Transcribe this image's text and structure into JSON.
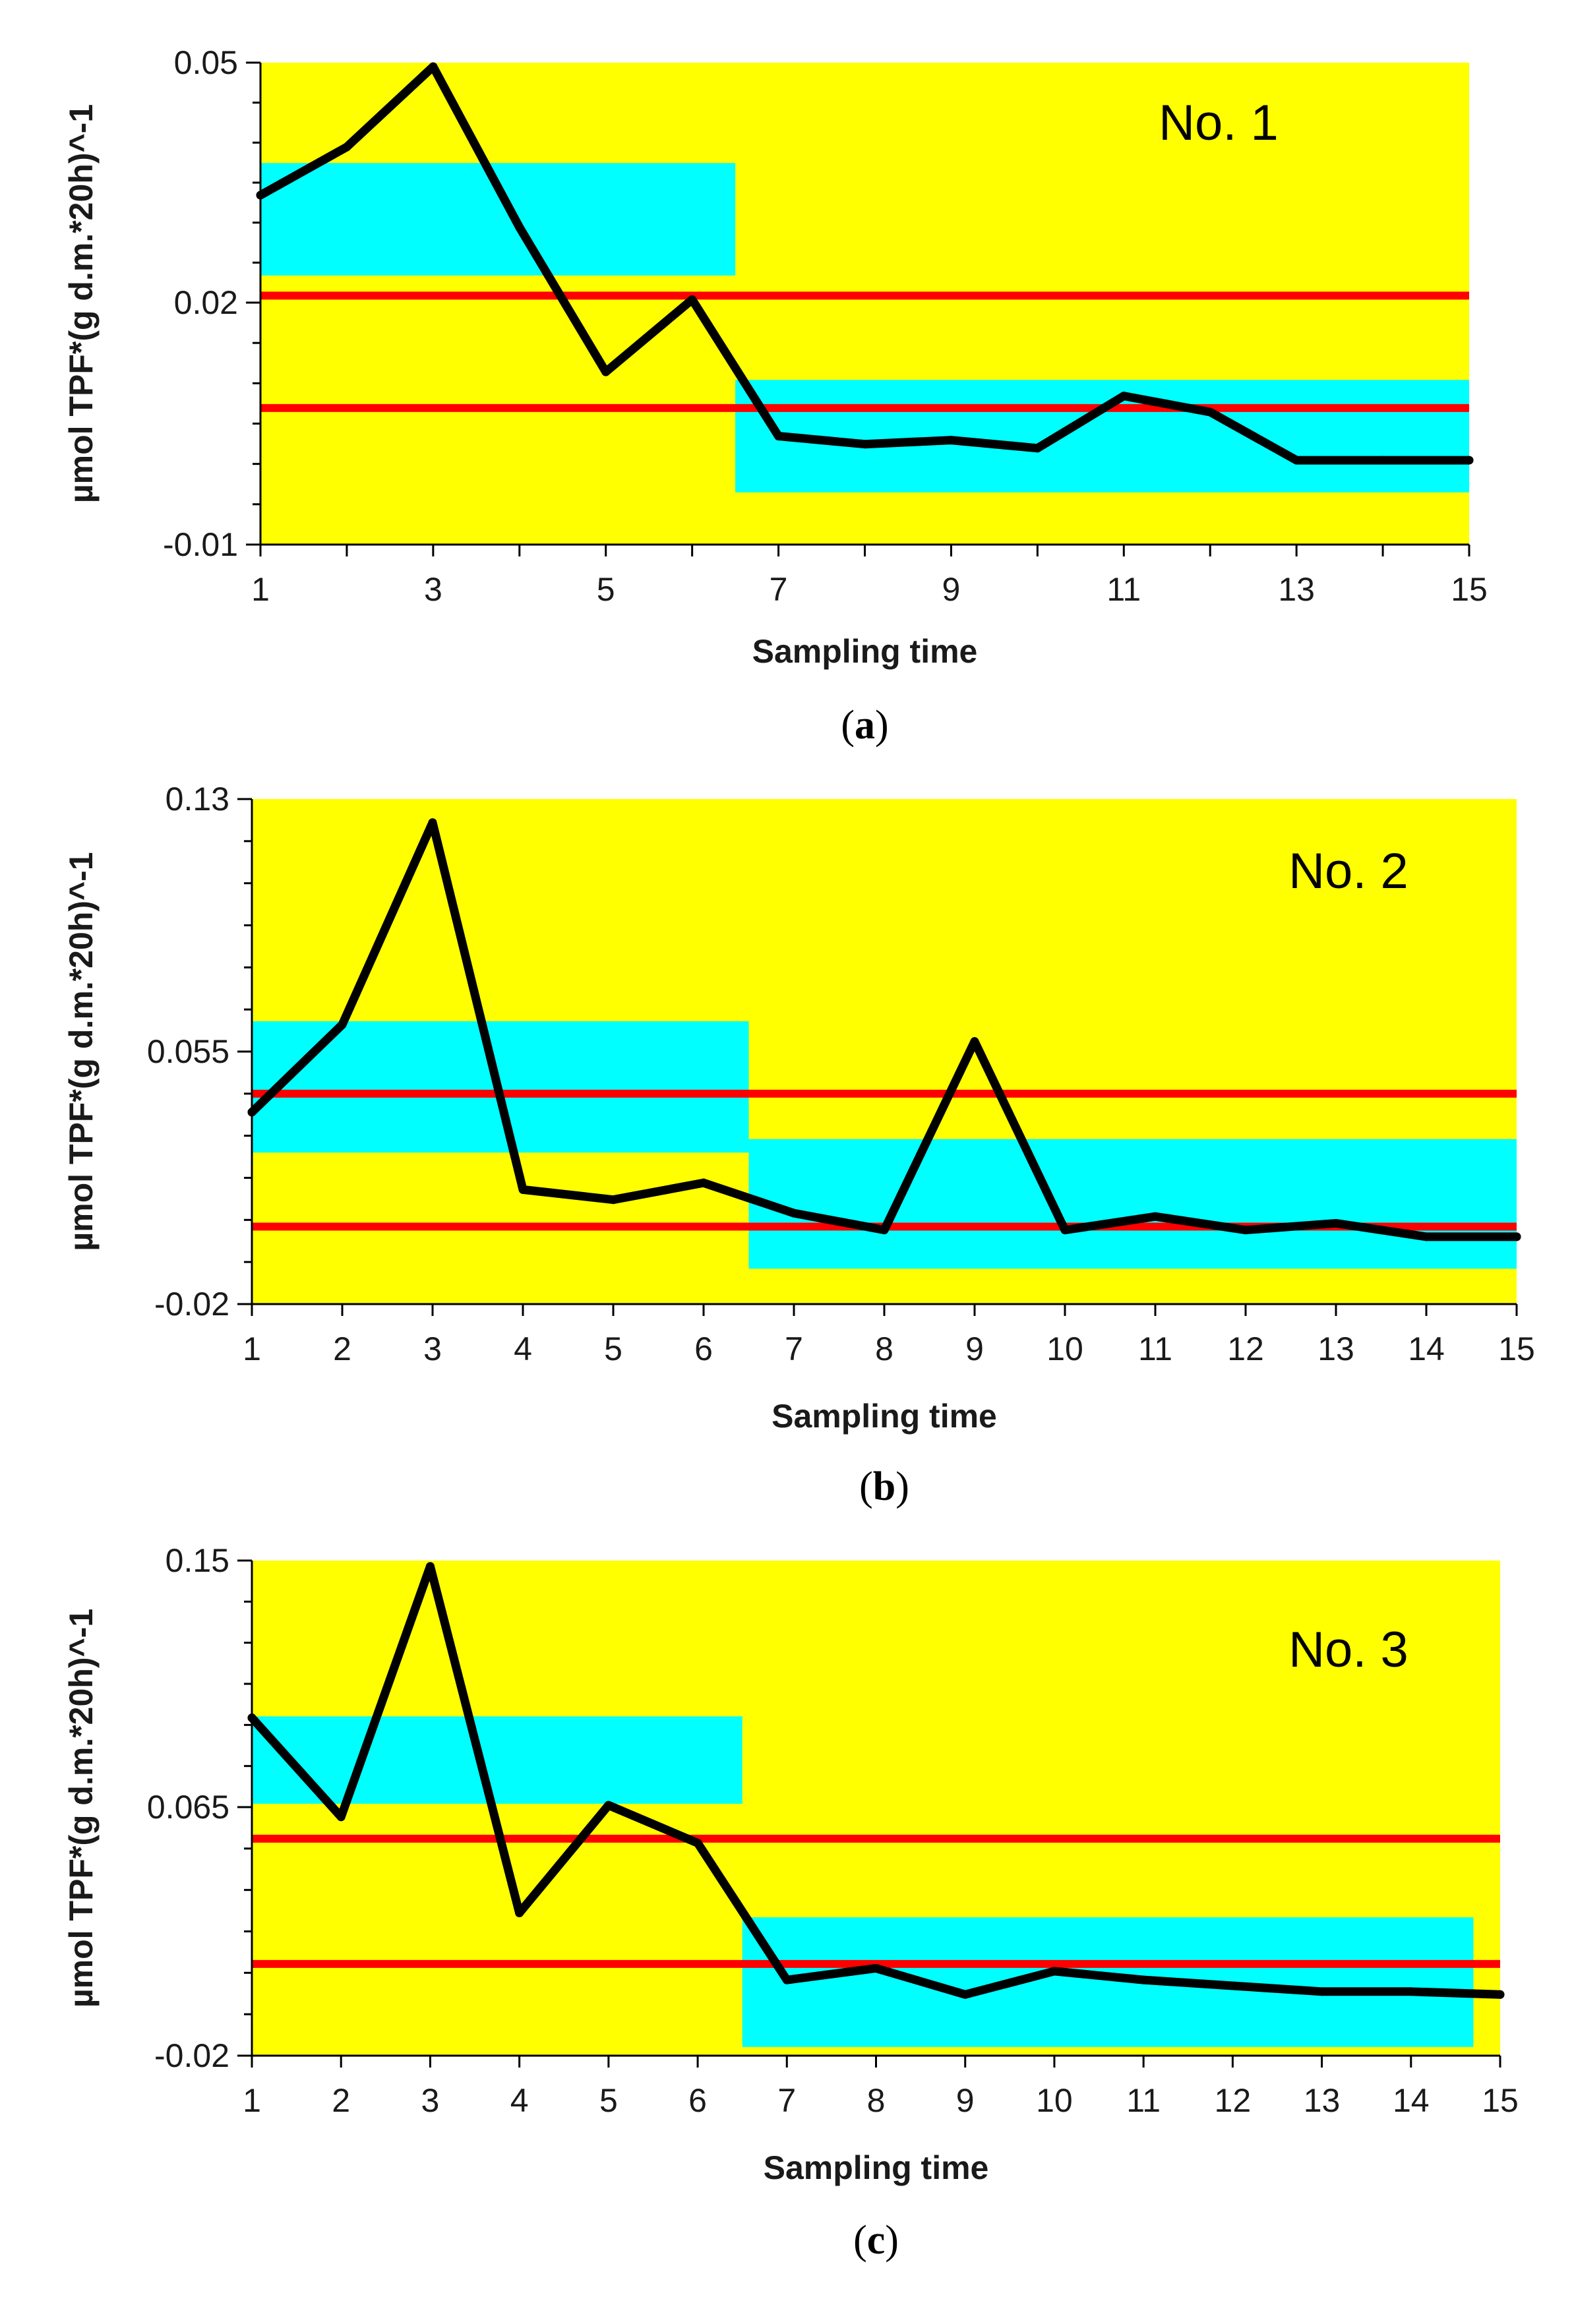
{
  "figure": {
    "colors": {
      "background": "#ffff00",
      "band": "#00ffff",
      "series": "#000000",
      "control_line": "#ff0000",
      "axis": "#000000"
    }
  },
  "chart_data": [
    {
      "type": "line",
      "panel": "a",
      "title": "No. 1",
      "caption_letter": "a",
      "xlabel": "Sampling time",
      "ylabel": "µmol TPF*(g d.m.*20h)^-1",
      "x_tick_labels": [
        "1",
        "3",
        "5",
        "7",
        "9",
        "11",
        "13",
        "15"
      ],
      "y_tick_labels": [
        "0.05",
        "0.02",
        "-0.01"
      ],
      "xlim": [
        1,
        15
      ],
      "ylim": [
        -0.01,
        0.05
      ],
      "x": [
        1,
        2,
        3,
        4,
        5,
        6,
        7,
        8,
        9,
        10,
        11,
        12,
        13,
        14,
        15
      ],
      "values": [
        0.0335,
        0.0395,
        0.0495,
        0.0295,
        0.0115,
        0.0205,
        0.0035,
        0.0025,
        0.003,
        0.002,
        0.0085,
        0.0065,
        0.0005,
        0.0005,
        0.0005
      ],
      "control_lines": [
        0.021,
        0.007
      ],
      "bands": [
        {
          "x_range": [
            1,
            6.5
          ],
          "y_range": [
            0.0235,
            0.0375
          ]
        },
        {
          "x_range": [
            6.5,
            15
          ],
          "y_range": [
            -0.0035,
            0.0105
          ]
        }
      ]
    },
    {
      "type": "line",
      "panel": "b",
      "title": "No. 2",
      "caption_letter": "b",
      "xlabel": "Sampling time",
      "ylabel": "µmol TPF*(g d.m.*20h)^-1",
      "x_tick_labels": [
        "1",
        "2",
        "3",
        "4",
        "5",
        "6",
        "7",
        "8",
        "9",
        "10",
        "11",
        "12",
        "13",
        "14",
        "15"
      ],
      "y_tick_labels": [
        "0.13",
        "0.055",
        "-0.02"
      ],
      "xlim": [
        1,
        15
      ],
      "ylim": [
        -0.02,
        0.13
      ],
      "x": [
        1,
        2,
        3,
        4,
        5,
        6,
        7,
        8,
        9,
        10,
        11,
        12,
        13,
        14,
        15
      ],
      "values": [
        0.037,
        0.063,
        0.123,
        0.014,
        0.011,
        0.016,
        0.007,
        0.002,
        0.058,
        0.002,
        0.006,
        0.002,
        0.004,
        0.0,
        0.0
      ],
      "control_lines": [
        0.0425,
        0.003
      ],
      "bands": [
        {
          "x_range": [
            1,
            6.5
          ],
          "y_range": [
            0.025,
            0.064
          ]
        },
        {
          "x_range": [
            6.5,
            15
          ],
          "y_range": [
            -0.0095,
            0.029
          ]
        }
      ]
    },
    {
      "type": "line",
      "panel": "c",
      "title": "No. 3",
      "caption_letter": "c",
      "xlabel": "Sampling time",
      "ylabel": "µmol TPF*(g d.m.*20h)^-1",
      "x_tick_labels": [
        "1",
        "2",
        "3",
        "4",
        "5",
        "6",
        "7",
        "8",
        "9",
        "10",
        "11",
        "12",
        "13",
        "14",
        "15"
      ],
      "y_tick_labels": [
        "0.15",
        "0.065",
        "-0.02"
      ],
      "xlim": [
        1,
        15
      ],
      "ylim": [
        -0.02,
        0.15
      ],
      "x": [
        1,
        2,
        3,
        4,
        5,
        6,
        7,
        8,
        9,
        10,
        11,
        12,
        13,
        14,
        15
      ],
      "values": [
        0.096,
        0.062,
        0.148,
        0.029,
        0.066,
        0.053,
        0.006,
        0.01,
        0.001,
        0.009,
        0.006,
        0.004,
        0.002,
        0.002,
        0.001
      ],
      "control_lines": [
        0.0545,
        0.0115
      ],
      "bands": [
        {
          "x_range": [
            1,
            6.5
          ],
          "y_range": [
            0.0665,
            0.0965
          ]
        },
        {
          "x_range": [
            6.5,
            14.7
          ],
          "y_range": [
            -0.017,
            0.0275
          ]
        }
      ]
    }
  ]
}
